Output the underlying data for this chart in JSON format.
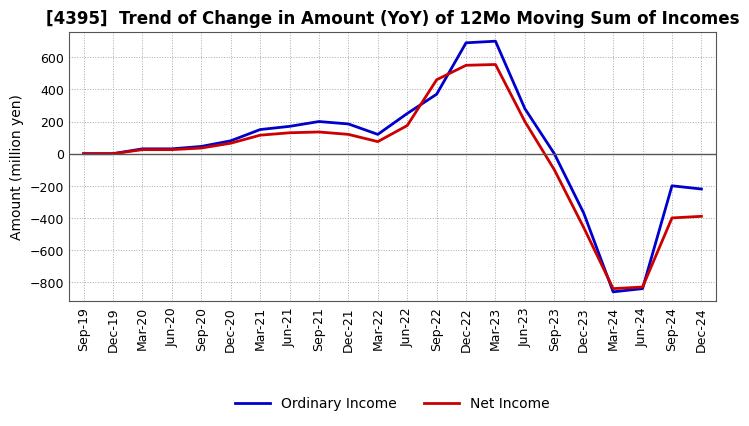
{
  "title": "[4395]  Trend of Change in Amount (YoY) of 12Mo Moving Sum of Incomes",
  "ylabel": "Amount (million yen)",
  "ylim": [
    -920,
    760
  ],
  "yticks": [
    -800,
    -600,
    -400,
    -200,
    0,
    200,
    400,
    600
  ],
  "x_labels": [
    "Sep-19",
    "Dec-19",
    "Mar-20",
    "Jun-20",
    "Sep-20",
    "Dec-20",
    "Mar-21",
    "Jun-21",
    "Sep-21",
    "Dec-21",
    "Mar-22",
    "Jun-22",
    "Sep-22",
    "Dec-22",
    "Mar-23",
    "Jun-23",
    "Sep-23",
    "Dec-23",
    "Mar-24",
    "Jun-24",
    "Sep-24",
    "Dec-24"
  ],
  "ordinary_income": [
    0,
    0,
    30,
    30,
    45,
    80,
    150,
    170,
    200,
    185,
    120,
    250,
    370,
    690,
    700,
    280,
    0,
    -370,
    -860,
    -840,
    -200,
    -220
  ],
  "net_income": [
    0,
    0,
    25,
    25,
    35,
    65,
    115,
    130,
    135,
    120,
    75,
    175,
    460,
    550,
    555,
    200,
    -100,
    -460,
    -840,
    -830,
    -400,
    -390
  ],
  "ordinary_color": "#0000cc",
  "net_color": "#cc0000",
  "line_width": 2.0,
  "background_color": "#ffffff",
  "grid_color": "#aaaaaa",
  "title_fontsize": 12,
  "label_fontsize": 10,
  "tick_fontsize": 9,
  "legend_fontsize": 10
}
